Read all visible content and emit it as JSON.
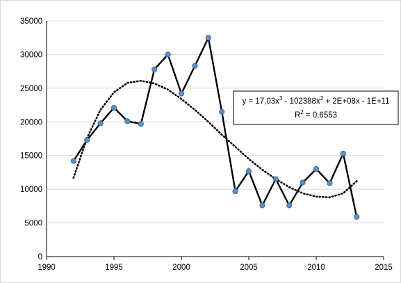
{
  "chart_data": {
    "type": "scatter",
    "title": "",
    "xlabel": "",
    "ylabel": "",
    "xlim": [
      1990,
      2015
    ],
    "ylim": [
      0,
      35000
    ],
    "x_ticks": [
      "1990",
      "1995",
      "2000",
      "2005",
      "2010",
      "2015"
    ],
    "y_ticks": [
      "0",
      "5000",
      "10000",
      "15000",
      "20000",
      "25000",
      "30000",
      "35000"
    ],
    "grid": "horizontal",
    "series": [
      {
        "x": [
          1992,
          1993,
          1994,
          1995,
          1996,
          1997,
          1998,
          1999,
          2000,
          2001,
          2002,
          2003,
          2004,
          2005,
          2006,
          2007,
          2008,
          2009,
          2010,
          2011,
          2012,
          2013
        ],
        "y": [
          14200,
          17300,
          19800,
          22100,
          20100,
          19700,
          27800,
          30000,
          24200,
          28300,
          32500,
          21500,
          9700,
          12700,
          7600,
          11500,
          7600,
          11000,
          13000,
          10900,
          15300,
          5900
        ],
        "color": "#000000",
        "marker_color": "#5b8fc9"
      }
    ],
    "trendline": {
      "type": "polynomial",
      "order": 3,
      "style": "dotted",
      "color": "#000000",
      "x": [
        1992,
        1993,
        1994,
        1995,
        1996,
        1997,
        1998,
        1999,
        2000,
        2001,
        2002,
        2003,
        2004,
        2005,
        2006,
        2007,
        2008,
        2009,
        2010,
        2011,
        2012,
        2013
      ],
      "y": [
        11700,
        17600,
        21800,
        24400,
        25800,
        26100,
        25700,
        24800,
        23400,
        21800,
        20000,
        18100,
        16300,
        14500,
        12900,
        11500,
        10300,
        9400,
        8900,
        8800,
        9400,
        11200
      ]
    },
    "annotation": {
      "equation_prefix": "y = 17,03x",
      "equation_exp1": "3",
      "equation_mid": " - 102388x",
      "equation_exp2": "2",
      "equation_suffix": " + 2E+08x  - 1E+11",
      "r_squared_prefix": "R",
      "r_squared_exp": "2",
      "r_squared_suffix": " = 0,6553"
    }
  }
}
